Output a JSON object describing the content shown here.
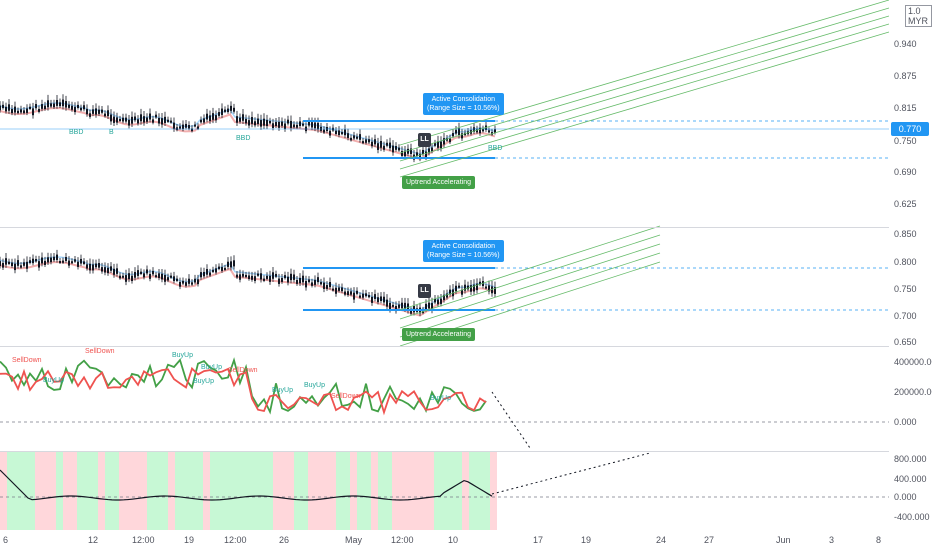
{
  "currency": "MYR",
  "top_scale_label": "1.0",
  "current_price": "0.770",
  "pane1_ticks": [
    "0.940",
    "0.875",
    "0.815",
    "0.750",
    "0.690",
    "0.625"
  ],
  "pane2_ticks": [
    "0.850",
    "0.800",
    "0.750",
    "0.700",
    "0.650"
  ],
  "pane3_ticks": [
    "400000.000",
    "200000.000",
    "0.000"
  ],
  "pane4_ticks": [
    "800.000",
    "400.000",
    "0.000",
    "-400.000"
  ],
  "x_ticks": [
    "6",
    "12",
    "12:00",
    "19",
    "12:00",
    "26",
    "May",
    "12:00",
    "10",
    "17",
    "19",
    "24",
    "27",
    "Jun",
    "3",
    "8"
  ],
  "annotations": {
    "consolidation_title": "Active Consolidation",
    "consolidation_range": "(Range Size = 10.56%)",
    "uptrend": "Uptrend Accelerating",
    "ll": "LL"
  },
  "pane1_signals": [
    "BBD",
    "B",
    "BBD",
    "BBD"
  ],
  "pane3_signals": [
    {
      "text": "SellDown",
      "color": "#ef5350"
    },
    {
      "text": "SellDown",
      "color": "#ef5350"
    },
    {
      "text": "BuyUp",
      "color": "#26a69a"
    },
    {
      "text": "BuyUp",
      "color": "#26a69a"
    },
    {
      "text": "BuyUp",
      "color": "#26a69a"
    },
    {
      "text": "BuyUp",
      "color": "#26a69a"
    },
    {
      "text": "SellDown",
      "color": "#ef5350"
    },
    {
      "text": "BuyUp",
      "color": "#26a69a"
    },
    {
      "text": "BuyUp",
      "color": "#26a69a"
    },
    {
      "text": "SellDown",
      "color": "#ef5350"
    },
    {
      "text": "BuyUp",
      "color": "#26a69a"
    }
  ],
  "colors": {
    "blue": "#2196f3",
    "green": "#43a047",
    "red": "#ef5350",
    "channel": "#66bb6a"
  }
}
